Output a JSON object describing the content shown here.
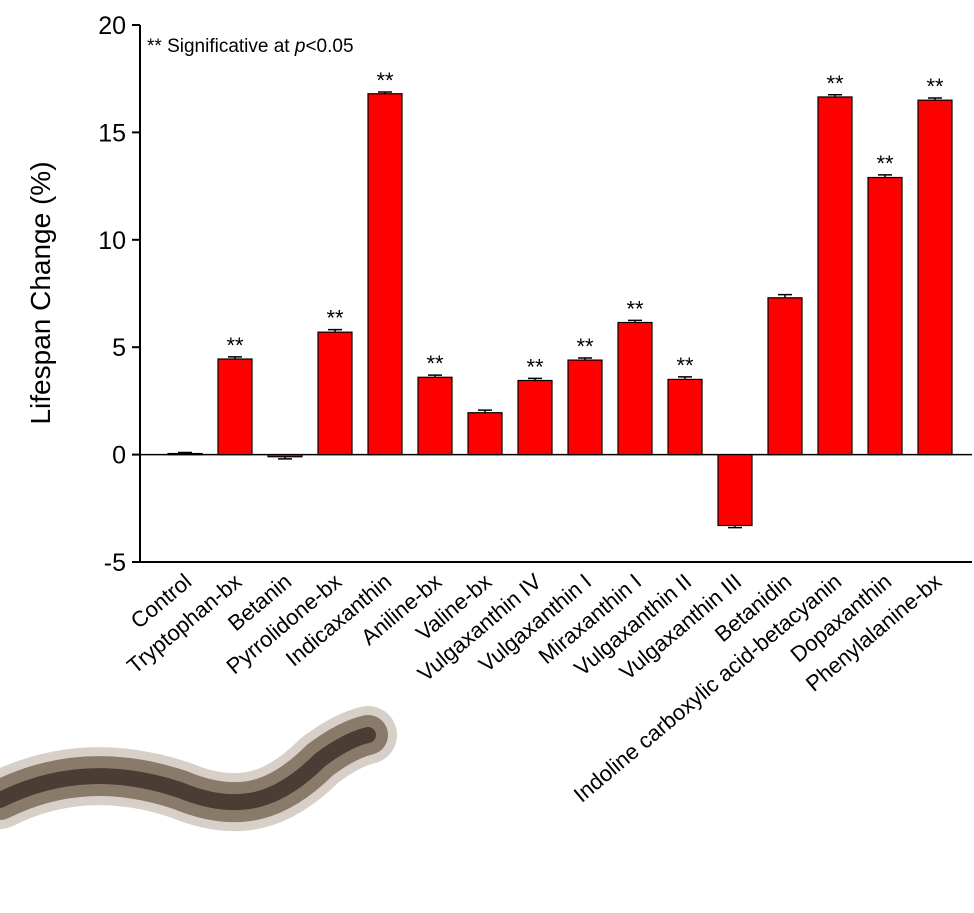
{
  "chart_data": {
    "type": "bar",
    "y_label": "Lifespan Change (%)",
    "annotation": {
      "prefix": "** Significative at ",
      "p": "p",
      "suffix": "<0.05"
    },
    "categories": [
      "Control",
      "Tryptophan-bx",
      "Betanin",
      "Pyrrolidone-bx",
      "Indicaxanthin",
      "Aniline-bx",
      "Valine-bx",
      "Vulgaxanthin IV",
      "Vulgaxanthin I",
      "Miraxanthin I",
      "Vulgaxanthin II",
      "Vulgaxanthin III",
      "Betanidin",
      "Indoline carboxylic acid-betacyanin",
      "Dopaxanthin",
      "Phenylalanine-bx"
    ],
    "values": [
      0.05,
      4.45,
      -0.1,
      5.7,
      16.8,
      3.6,
      1.95,
      3.45,
      4.4,
      6.15,
      3.5,
      -3.3,
      7.3,
      16.65,
      12.9,
      16.5
    ],
    "errors": [
      0.05,
      0.1,
      0.1,
      0.12,
      0.08,
      0.1,
      0.12,
      0.1,
      0.1,
      0.1,
      0.12,
      0.1,
      0.15,
      0.1,
      0.12,
      0.1
    ],
    "significance": [
      null,
      "**",
      null,
      "**",
      "**",
      "**",
      null,
      "**",
      "**",
      "**",
      "**",
      null,
      null,
      "**",
      "**",
      "**"
    ],
    "color": "#ff0000",
    "ylim": [
      -5,
      20
    ],
    "yticks": [
      -5,
      0,
      5,
      10,
      15,
      20
    ]
  }
}
